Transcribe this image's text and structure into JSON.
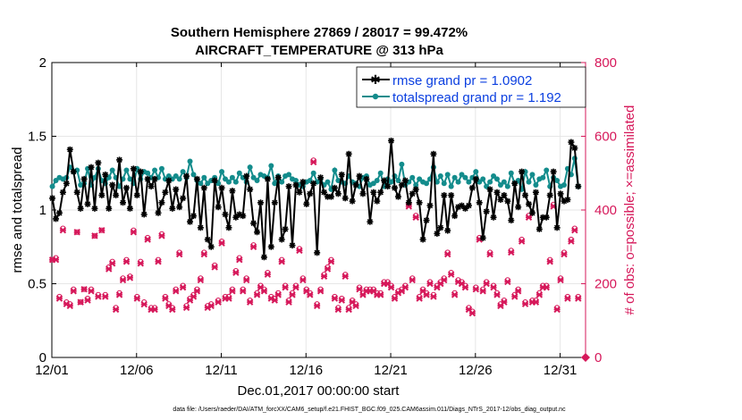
{
  "chart_data": {
    "type": "line",
    "title": "Southern Hemisphere 27869 / 28017 = 99.472%",
    "subtitle": "AIRCRAFT_TEMPERATURE @ 313 hPa",
    "xlabel": "Dec.01,2017 00:00:00 start",
    "ylabel": "rmse and totalspread",
    "y2label": "# of obs: o=possible; ×=assimilated",
    "footnote": "data file: /Users/raeder/DAI/ATM_forcXX/CAM6_setup/f.e21.FHIST_BGC.f09_025.CAM6assim.011/Diags_NTrS_2017-12/obs_diag_output.nc",
    "xlim": [
      0,
      31.5
    ],
    "ylim": [
      0,
      2
    ],
    "y2lim": [
      0,
      800
    ],
    "x_ticks": [
      0,
      5,
      10,
      15,
      20,
      25,
      30
    ],
    "x_tick_labels": [
      "12/01",
      "12/06",
      "12/11",
      "12/16",
      "12/21",
      "12/26",
      "12/31"
    ],
    "y_ticks": [
      0,
      0.5,
      1,
      1.5,
      2
    ],
    "y_tick_labels": [
      "0",
      "0.5",
      "1",
      "1.5",
      "2"
    ],
    "y2_ticks": [
      0,
      200,
      400,
      600,
      800
    ],
    "y2_tick_labels": [
      "0",
      "200",
      "400",
      "600",
      "800"
    ],
    "grid": true,
    "legend_position": "top-right",
    "series": [
      {
        "name": "rmse grand pr = 1.0902",
        "color": "#000000",
        "marker": "star",
        "axis": "left",
        "values": [
          1.08,
          0.94,
          0.98,
          1.12,
          1.18,
          1.41,
          1.26,
          1.12,
          1.01,
          1.21,
          1.04,
          1.29,
          1.01,
          1.32,
          1.1,
          1.24,
          1.01,
          1.17,
          1.1,
          1.34,
          1.05,
          1.15,
          1.01,
          1.28,
          1.1,
          1.26,
          0.97,
          1.21,
          1.16,
          1.21,
          0.98,
          1.05,
          1.12,
          1.2,
          1.01,
          1.14,
          1.02,
          1.08,
          1.23,
          0.92,
          0.96,
          1.21,
          0.88,
          1.15,
          0.8,
          0.75,
          1.2,
          1.02,
          1.15,
          0.97,
          0.88,
          1.13,
          0.95,
          0.97,
          0.96,
          1.23,
          1.14,
          0.91,
          0.85,
          1.05,
          0.68,
          1.21,
          0.75,
          1.05,
          1.22,
          0.8,
          0.87,
          1.16,
          0.76,
          1.17,
          1.12,
          1.19,
          1.04,
          1.11,
          1.18,
          0.71,
          1.22,
          1.12,
          1.09,
          1.09,
          1.15,
          1.11,
          1.24,
          1.08,
          1.38,
          1.06,
          1.17,
          1.23,
          1.11,
          1.21,
          0.92,
          1.12,
          1.06,
          1.12,
          1.2,
          1.16,
          1.47,
          1.15,
          1.09,
          1.17,
          1.2,
          1.05,
          1.11,
          1.14,
          1.05,
          0.8,
          0.93,
          1.03,
          1.38,
          0.84,
          0.88,
          1.1,
          0.86,
          1.1,
          0.96,
          1.02,
          1.03,
          1.01,
          1.03,
          1.15,
          1.21,
          1.05,
          0.81,
          0.99,
          1.14,
          0.95,
          1.12,
          1.07,
          1.1,
          1.06,
          0.93,
          1.18,
          1.02,
          1.26,
          1.1,
          1.04,
          0.98,
          1.12,
          0.87,
          0.95,
          0.95,
          1.1,
          1.26,
          0.88,
          1.11,
          1.06,
          1.07,
          1.46,
          1.42,
          1.16
        ],
        "values_count": 150
      },
      {
        "name": "totalspread grand pr = 1.192",
        "color": "#138c8c",
        "marker": "dot",
        "axis": "left",
        "values": [
          1.16,
          1.2,
          1.22,
          1.21,
          1.22,
          1.29,
          1.26,
          1.27,
          1.17,
          1.18,
          1.28,
          1.17,
          1.22,
          1.28,
          1.2,
          1.18,
          1.22,
          1.27,
          1.22,
          1.16,
          1.21,
          1.27,
          1.21,
          1.18,
          1.28,
          1.21,
          1.26,
          1.25,
          1.22,
          1.27,
          1.22,
          1.28,
          1.21,
          1.23,
          1.21,
          1.23,
          1.21,
          1.26,
          1.22,
          1.33,
          1.24,
          1.2,
          1.18,
          1.22,
          1.18,
          1.2,
          1.22,
          1.18,
          1.26,
          1.21,
          1.19,
          1.22,
          1.19,
          1.25,
          1.22,
          1.19,
          1.29,
          1.22,
          1.2,
          1.24,
          1.23,
          1.22,
          1.3,
          1.18,
          1.23,
          1.19,
          1.23,
          1.24,
          1.21,
          1.2,
          1.17,
          1.16,
          1.19,
          1.2,
          1.25,
          1.19,
          1.21,
          1.17,
          1.19,
          1.14,
          1.27,
          1.2,
          1.19,
          1.18,
          1.23,
          1.19,
          1.18,
          1.16,
          1.22,
          1.23,
          1.17,
          1.18,
          1.2,
          1.25,
          1.16,
          1.21,
          1.19,
          1.23,
          1.2,
          1.31,
          1.17,
          1.19,
          1.22,
          1.17,
          1.21,
          1.19,
          1.18,
          1.21,
          1.29,
          1.19,
          1.23,
          1.18,
          1.24,
          1.16,
          1.22,
          1.19,
          1.24,
          1.22,
          1.19,
          1.22,
          1.26,
          1.19,
          1.21,
          1.16,
          1.19,
          1.23,
          1.21,
          1.17,
          1.19,
          1.16,
          1.25,
          1.18,
          1.2,
          1.14,
          1.26,
          1.19,
          1.24,
          1.17,
          1.21,
          1.22,
          1.27,
          1.16,
          1.22,
          1.2,
          1.16,
          1.17,
          1.28,
          1.24,
          1.35,
          1.16
        ],
        "values_count": 150
      },
      {
        "name": "# of obs assimilated",
        "color": "#d6185a",
        "marker": "x",
        "axis": "right",
        "values": [
          265,
          265,
          160,
          345,
          145,
          140,
          180,
          340,
          150,
          185,
          155,
          180,
          330,
          165,
          345,
          165,
          240,
          255,
          130,
          170,
          210,
          260,
          216,
          340,
          160,
          255,
          144,
          320,
          130,
          130,
          260,
          330,
          160,
          140,
          130,
          180,
          280,
          190,
          135,
          155,
          165,
          180,
          210,
          280,
          135,
          140,
          245,
          150,
          310,
          160,
          160,
          180,
          230,
          265,
          180,
          210,
          150,
          300,
          170,
          190,
          180,
          225,
          160,
          155,
          170,
          260,
          190,
          150,
          170,
          190,
          290,
          210,
          180,
          170,
          530,
          140,
          180,
          220,
          240,
          260,
          160,
          130,
          155,
          220,
          130,
          150,
          140,
          185,
          170,
          180,
          180,
          180,
          170,
          170,
          200,
          200,
          190,
          160,
          175,
          180,
          190,
          410,
          210,
          380,
          160,
          180,
          170,
          200,
          165,
          190,
          200,
          210,
          280,
          225,
          170,
          205,
          200,
          190,
          130,
          120,
          185,
          320,
          180,
          200,
          280,
          190,
          170,
          140,
          150,
          205,
          285,
          165,
          180,
          315,
          145,
          380,
          150,
          150,
          170,
          190,
          190,
          260,
          410,
          130,
          210,
          280,
          160,
          315,
          345,
          160
        ],
        "values_count": 150
      },
      {
        "name": "# of obs possible",
        "color": "#d6185a",
        "marker": "circle",
        "axis": "right",
        "values": [
          265,
          270,
          165,
          350,
          150,
          145,
          185,
          340,
          150,
          185,
          160,
          185,
          330,
          170,
          345,
          170,
          245,
          260,
          135,
          175,
          215,
          265,
          220,
          345,
          165,
          260,
          150,
          325,
          135,
          135,
          265,
          335,
          165,
          145,
          135,
          185,
          285,
          195,
          140,
          160,
          170,
          185,
          215,
          285,
          140,
          145,
          250,
          155,
          315,
          165,
          165,
          185,
          235,
          270,
          185,
          215,
          155,
          305,
          175,
          195,
          185,
          230,
          165,
          160,
          175,
          265,
          195,
          155,
          175,
          195,
          295,
          215,
          185,
          175,
          535,
          145,
          185,
          225,
          245,
          265,
          165,
          135,
          160,
          225,
          135,
          155,
          145,
          190,
          175,
          185,
          185,
          185,
          175,
          175,
          205,
          205,
          195,
          165,
          180,
          185,
          195,
          415,
          215,
          385,
          165,
          185,
          175,
          205,
          170,
          195,
          205,
          215,
          285,
          230,
          175,
          210,
          205,
          195,
          135,
          125,
          190,
          325,
          185,
          205,
          285,
          195,
          175,
          145,
          155,
          210,
          290,
          170,
          185,
          320,
          150,
          385,
          155,
          155,
          175,
          195,
          195,
          265,
          415,
          135,
          215,
          285,
          165,
          320,
          350,
          165
        ],
        "values_count": 150
      }
    ],
    "x_step_days": 0.2083
  }
}
